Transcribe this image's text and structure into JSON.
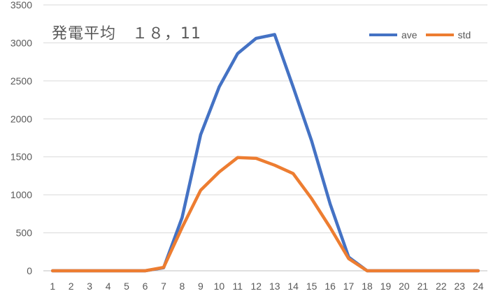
{
  "chart_data": {
    "type": "line",
    "title": "発電平均　１８，11",
    "x": [
      1,
      2,
      3,
      4,
      5,
      6,
      7,
      8,
      9,
      10,
      11,
      12,
      13,
      14,
      15,
      16,
      17,
      18,
      19,
      20,
      21,
      22,
      23,
      24
    ],
    "ylim": [
      0,
      3500
    ],
    "y_ticks": [
      0,
      500,
      1000,
      1500,
      2000,
      2500,
      3000,
      3500
    ],
    "grid": true,
    "legend_position": "top-right",
    "series": [
      {
        "name": "ave",
        "color": "#4472C4",
        "values": [
          0,
          0,
          0,
          0,
          0,
          0,
          40,
          700,
          1790,
          2420,
          2860,
          3060,
          3110,
          2420,
          1710,
          880,
          180,
          0,
          0,
          0,
          0,
          0,
          0,
          0
        ]
      },
      {
        "name": "std",
        "color": "#ED7D31",
        "values": [
          0,
          0,
          0,
          0,
          0,
          0,
          45,
          570,
          1060,
          1300,
          1490,
          1480,
          1390,
          1280,
          950,
          570,
          160,
          0,
          0,
          0,
          0,
          0,
          0,
          0
        ]
      }
    ]
  }
}
